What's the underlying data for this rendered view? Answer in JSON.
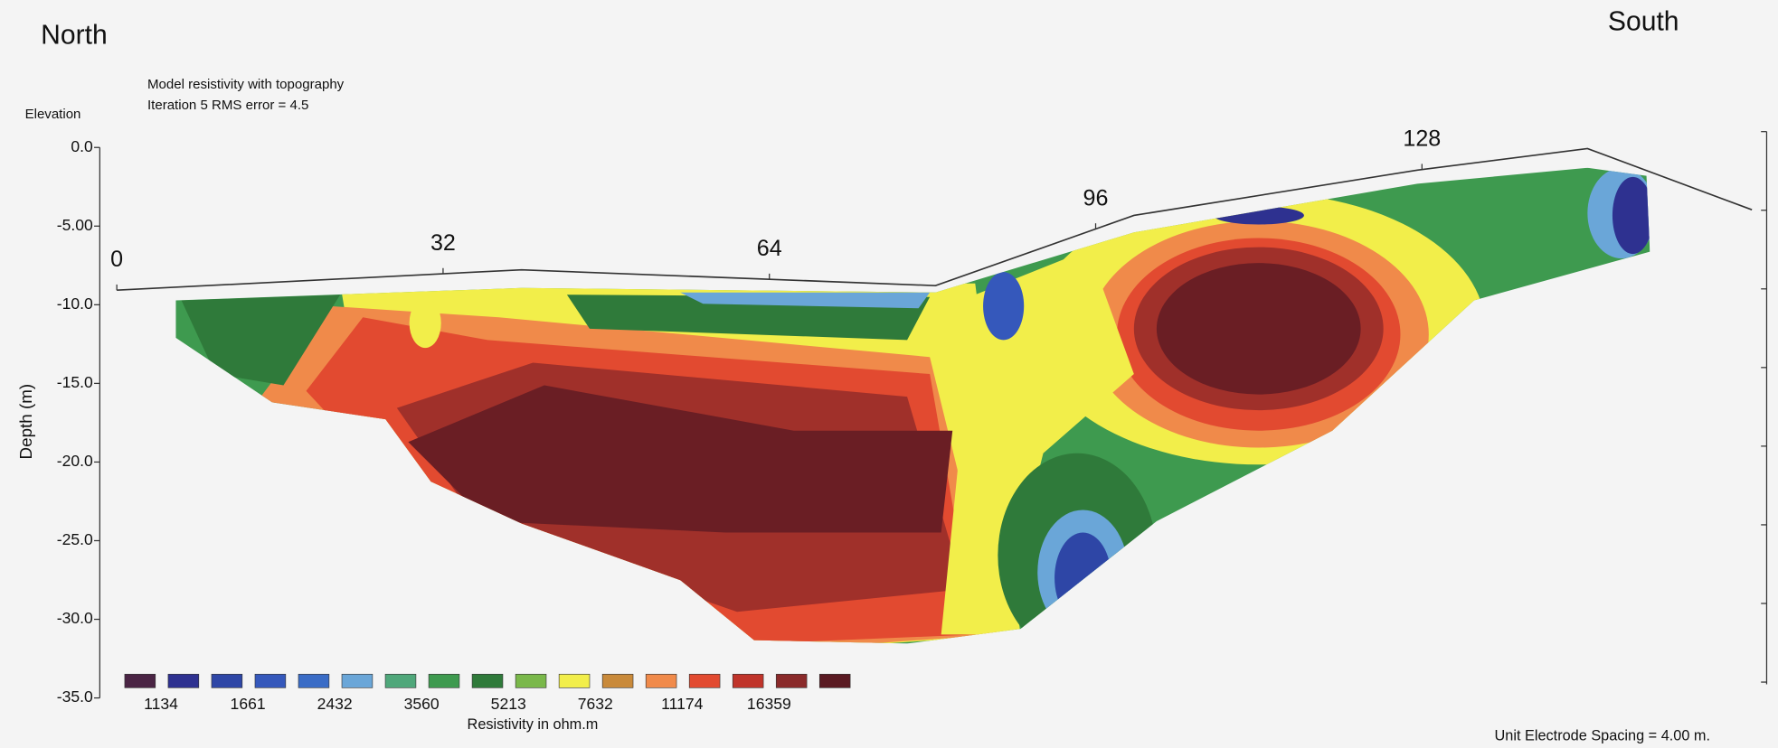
{
  "chart_data": {
    "type": "contour",
    "left_label": "North",
    "right_label": "South",
    "title": "Model resistivity with topography",
    "subtitle": "Iteration 5 RMS error = 4.5",
    "elevation_label": "Elevation",
    "y_label": "Depth (m)",
    "footnote": "Unit Electrode Spacing = 4.00 m.",
    "xlim": [
      0,
      128
    ],
    "xticks": [
      0,
      32,
      64,
      96,
      128
    ],
    "ylim": [
      -35,
      0
    ],
    "yticks": [
      {
        "value": 0,
        "label": "0.0"
      },
      {
        "value": -5,
        "label": "-5.00"
      },
      {
        "value": -10,
        "label": "-10.0"
      },
      {
        "value": -15,
        "label": "-15.0"
      },
      {
        "value": -20,
        "label": "-20.0"
      },
      {
        "value": -25,
        "label": "-25.0"
      },
      {
        "value": -30,
        "label": "-30.0"
      },
      {
        "value": -35,
        "label": "-35.0"
      }
    ],
    "legend": {
      "title": "Resistivity in ohm.m",
      "colors": [
        "#4a2444",
        "#2e3190",
        "#2e46a6",
        "#3558bb",
        "#3a6cc6",
        "#6aa6d8",
        "#4fa77a",
        "#3e9a4f",
        "#2f7a3a",
        "#7ab84a",
        "#f2ee4a",
        "#c98a3a",
        "#f08a4a",
        "#e24a30",
        "#c0342a",
        "#8a2a2a",
        "#5a1a22"
      ],
      "values": [
        1134,
        1661,
        2432,
        3560,
        5213,
        7632,
        11174,
        16359
      ]
    }
  }
}
